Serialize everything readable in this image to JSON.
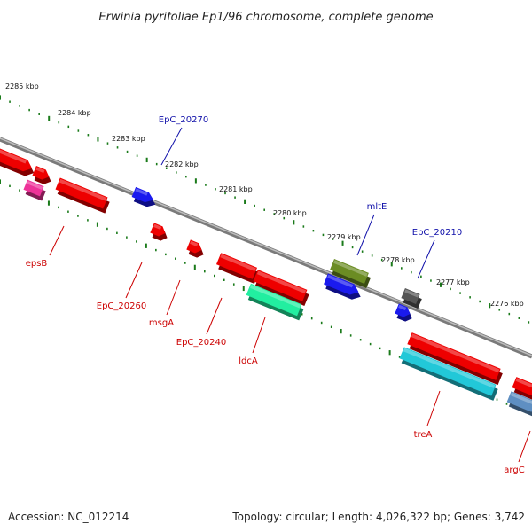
{
  "title": "Erwinia pyrifoliae Ep1/96 chromosome, complete genome",
  "footer": {
    "accession": "Accession: NC_012214",
    "summary": "Topology: circular; Length: 4,026,322 bp; Genes: 3,742"
  },
  "ruler_labels": [
    "2285 kbp",
    "2284 kbp",
    "2283 kbp",
    "2282 kbp",
    "2281 kbp",
    "2280 kbp",
    "2279 kbp",
    "2278 kbp",
    "2277 kbp",
    "2276 kbp"
  ],
  "gene_labels": {
    "outer": [
      "EpC_20270",
      "mltE",
      "EpC_20210"
    ],
    "inner": [
      "epsB",
      "EpC_20260",
      "msgA",
      "EpC_20240",
      "ldcA",
      "treA",
      "argC"
    ]
  },
  "colors": {
    "backbone": "#888888",
    "tick": "#1a7a1a",
    "outer_label": "#1111aa",
    "inner_label": "#cc0000",
    "red": "#ee0000",
    "blue": "#1a1aee",
    "olive": "#6b8c23",
    "gray": "#555555",
    "magenta": "#ee3399",
    "aqua_green": "#22eea0",
    "cyan": "#22c8d8",
    "steel": "#5f8fc2"
  },
  "features": [
    {
      "color": "red",
      "strand": "outer"
    },
    {
      "color": "red",
      "strand": "outer"
    },
    {
      "color": "red",
      "strand": "inner"
    },
    {
      "color": "magenta",
      "strand": "inner"
    },
    {
      "color": "blue",
      "strand": "outer"
    },
    {
      "color": "red",
      "strand": "inner"
    },
    {
      "color": "red",
      "strand": "inner"
    },
    {
      "color": "red",
      "strand": "inner"
    },
    {
      "color": "red",
      "strand": "inner"
    },
    {
      "color": "aqua_green",
      "strand": "inner"
    },
    {
      "color": "olive",
      "strand": "outer"
    },
    {
      "color": "blue",
      "strand": "outer"
    },
    {
      "color": "gray",
      "strand": "outer"
    },
    {
      "color": "blue",
      "strand": "outer"
    },
    {
      "color": "red",
      "strand": "inner"
    },
    {
      "color": "cyan",
      "strand": "inner"
    },
    {
      "color": "red",
      "strand": "inner"
    },
    {
      "color": "steel",
      "strand": "inner"
    }
  ]
}
